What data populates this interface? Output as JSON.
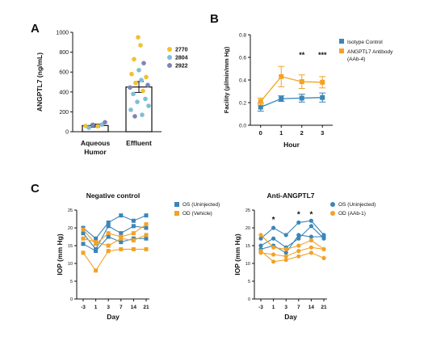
{
  "panel_labels": {
    "A": "A",
    "B": "B",
    "C": "C"
  },
  "chart_data": [
    {
      "id": "A",
      "type": "bar",
      "ylabel": "ANGPTL7 (ng/mL)",
      "ylim": [
        0,
        1000
      ],
      "yticks": [
        0,
        200,
        400,
        600,
        800,
        1000
      ],
      "categories": [
        "Aqueous Humor",
        "Effluent"
      ],
      "category_lines": [
        [
          "Aqueous",
          "Humor"
        ],
        [
          "Effluent"
        ]
      ],
      "bar_values": [
        62,
        450
      ],
      "bar_error": [
        15,
        55
      ],
      "legend": [
        {
          "label": "2770",
          "color": "#f2c12e"
        },
        {
          "label": "2804",
          "color": "#7fbfd6"
        },
        {
          "label": "2922",
          "color": "#7d84b8"
        }
      ],
      "points": [
        {
          "cat": 0,
          "dx": -12,
          "y": 58,
          "color": "#f2c12e"
        },
        {
          "cat": 0,
          "dx": -8,
          "y": 40,
          "color": "#7fbfd6"
        },
        {
          "cat": 0,
          "dx": -3,
          "y": 70,
          "color": "#7d84b8"
        },
        {
          "cat": 0,
          "dx": 3,
          "y": 55,
          "color": "#f2c12e"
        },
        {
          "cat": 0,
          "dx": 8,
          "y": 72,
          "color": "#7fbfd6"
        },
        {
          "cat": 0,
          "dx": 12,
          "y": 95,
          "color": "#7d84b8"
        },
        {
          "cat": 1,
          "dx": -1,
          "y": 950,
          "color": "#f2c12e"
        },
        {
          "cat": 1,
          "dx": 2,
          "y": 870,
          "color": "#f2c12e"
        },
        {
          "cat": 1,
          "dx": -6,
          "y": 730,
          "color": "#f2c12e"
        },
        {
          "cat": 1,
          "dx": 6,
          "y": 690,
          "color": "#7d84b8"
        },
        {
          "cat": 1,
          "dx": 0,
          "y": 620,
          "color": "#7fbfd6"
        },
        {
          "cat": 1,
          "dx": -9,
          "y": 580,
          "color": "#f2c12e"
        },
        {
          "cat": 1,
          "dx": 9,
          "y": 550,
          "color": "#f2c12e"
        },
        {
          "cat": 1,
          "dx": 3,
          "y": 520,
          "color": "#7fbfd6"
        },
        {
          "cat": 1,
          "dx": -4,
          "y": 490,
          "color": "#f2c12e"
        },
        {
          "cat": 1,
          "dx": 11,
          "y": 470,
          "color": "#7d84b8"
        },
        {
          "cat": 1,
          "dx": -11,
          "y": 445,
          "color": "#7d84b8"
        },
        {
          "cat": 1,
          "dx": 5,
          "y": 410,
          "color": "#f2c12e"
        },
        {
          "cat": 1,
          "dx": -7,
          "y": 380,
          "color": "#7fbfd6"
        },
        {
          "cat": 1,
          "dx": 8,
          "y": 330,
          "color": "#7fbfd6"
        },
        {
          "cat": 1,
          "dx": -2,
          "y": 300,
          "color": "#7fbfd6"
        },
        {
          "cat": 1,
          "dx": 12,
          "y": 260,
          "color": "#7fbfd6"
        },
        {
          "cat": 1,
          "dx": -10,
          "y": 220,
          "color": "#7fbfd6"
        },
        {
          "cat": 1,
          "dx": 4,
          "y": 170,
          "color": "#7fbfd6"
        },
        {
          "cat": 1,
          "dx": -5,
          "y": 155,
          "color": "#7d84b8"
        }
      ]
    },
    {
      "id": "B",
      "type": "line",
      "xlabel": "Hour",
      "ylabel": "Facility (μl/min/mm Hg)",
      "xlim": [
        -0.5,
        3.5
      ],
      "ylim": [
        0,
        0.8
      ],
      "x": [
        0,
        1,
        2,
        3
      ],
      "yticks": [
        0,
        0.2,
        0.4,
        0.6,
        0.8
      ],
      "ytick_labels": [
        "0.0",
        "0.2",
        "0.4",
        "0.6",
        "0.8"
      ],
      "legend_placement": "top-right",
      "series": [
        {
          "name": "Isotype Control",
          "color": "#3a86b8",
          "values": [
            0.16,
            0.235,
            0.24,
            0.245
          ],
          "errors": [
            0.035,
            0.025,
            0.035,
            0.04
          ]
        },
        {
          "name": "ANGPTL7 Antibody (AAb-4)",
          "name_lines": [
            "ANGPTL7 Antibody",
            "(AAb-4)"
          ],
          "color": "#f2a227",
          "values": [
            0.21,
            0.43,
            0.385,
            0.38
          ],
          "errors": [
            0.03,
            0.09,
            0.06,
            0.05
          ]
        }
      ],
      "annotations": [
        {
          "x": 2,
          "y": 0.6,
          "text": "**"
        },
        {
          "x": 3,
          "y": 0.6,
          "text": "***"
        }
      ]
    },
    {
      "id": "C1",
      "type": "line",
      "title": "Negative control",
      "xlabel": "Day",
      "ylabel": "IOP (mm Hg)",
      "categories": [
        "-3",
        "1",
        "3",
        "7",
        "14",
        "21"
      ],
      "ylim": [
        0,
        25
      ],
      "yticks": [
        0,
        5,
        10,
        15,
        20,
        25
      ],
      "legend_placement": "top-right",
      "series": [
        {
          "name": "OS (Uninjected)",
          "color": "#3a86b8",
          "lines": [
            [
              20,
              17,
              21.5,
              23.5,
              22,
              23.5
            ],
            [
              18.5,
              14,
              20.5,
              18.5,
              20.5,
              20
            ],
            [
              15.5,
              13.5,
              17.5,
              16,
              17,
              17
            ]
          ]
        },
        {
          "name": "OD (Vehicle)",
          "color": "#f2a227",
          "lines": [
            [
              19.5,
              15.5,
              18.5,
              17.5,
              18.5,
              21
            ],
            [
              17,
              16,
              15,
              17,
              16.5,
              18
            ],
            [
              13,
              8,
              13.5,
              14,
              14,
              14
            ]
          ]
        }
      ]
    },
    {
      "id": "C2",
      "type": "line",
      "title": "Anti-ANGPTL7",
      "xlabel": "Day",
      "ylabel": "IOP (mm Hg)",
      "categories": [
        "-3",
        "1",
        "3",
        "7",
        "14",
        "21"
      ],
      "ylim": [
        0,
        25
      ],
      "yticks": [
        0,
        5,
        10,
        15,
        20,
        25
      ],
      "legend_placement": "top-right",
      "series": [
        {
          "name": "OS (Uninjected)",
          "color": "#3a86b8",
          "lines": [
            [
              17,
              20,
              18,
              21.5,
              22,
              18
            ],
            [
              15,
              17,
              14.5,
              17,
              20.5,
              17
            ],
            [
              14,
              15,
              13,
              18,
              17.5,
              17.5
            ]
          ]
        },
        {
          "name": "OD (AAb-1)",
          "color": "#f2a227",
          "lines": [
            [
              18,
              14.5,
              14,
              15,
              16.5,
              14
            ],
            [
              13,
              12.5,
              12,
              13.5,
              14.5,
              14
            ],
            [
              13.5,
              10.5,
              11,
              12,
              13,
              11.5
            ]
          ]
        }
      ],
      "annotations": [
        {
          "cat": 1,
          "y": 22.5,
          "text": "*"
        },
        {
          "cat": 3,
          "y": 24,
          "text": "*"
        },
        {
          "cat": 4,
          "y": 24,
          "text": "*"
        }
      ]
    }
  ]
}
